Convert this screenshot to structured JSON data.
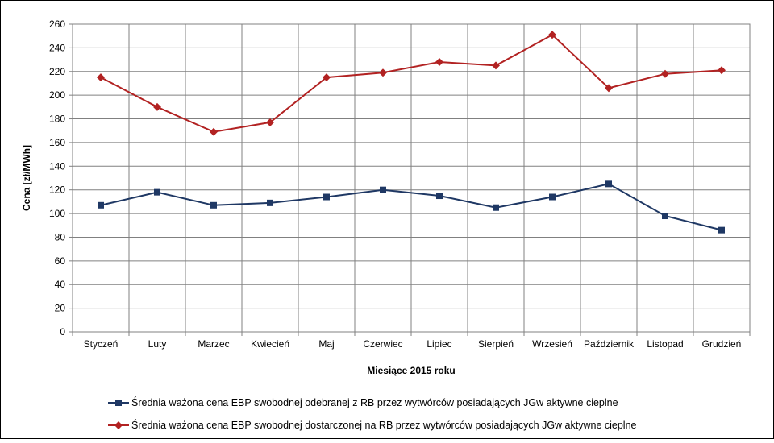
{
  "chart_data": {
    "type": "line",
    "xlabel": "Miesiące 2015  roku",
    "ylabel": "Cena [zł/MWh]",
    "ylim": [
      0,
      260
    ],
    "ytick_step": 20,
    "grid": true,
    "legend_position": "bottom",
    "categories": [
      "Styczeń",
      "Luty",
      "Marzec",
      "Kwiecień",
      "Maj",
      "Czerwiec",
      "Lipiec",
      "Sierpień",
      "Wrzesień",
      "Październik",
      "Listopad",
      "Grudzień"
    ],
    "series": [
      {
        "name": "Średnia ważona cena EBP swobodnej odebranej z RB przez wytwórców posiadających JGw aktywne cieplne",
        "color": "#1F3864",
        "marker": "square",
        "values": [
          107,
          118,
          107,
          109,
          114,
          120,
          115,
          105,
          114,
          125,
          98,
          86
        ]
      },
      {
        "name": "Średnia ważona cena EBP swobodnej dostarczonej na RB przez wytwórców posiadających JGw aktywne cieplne",
        "color": "#B22222",
        "marker": "diamond",
        "values": [
          215,
          190,
          169,
          177,
          215,
          219,
          228,
          225,
          251,
          206,
          218,
          221
        ]
      }
    ]
  }
}
